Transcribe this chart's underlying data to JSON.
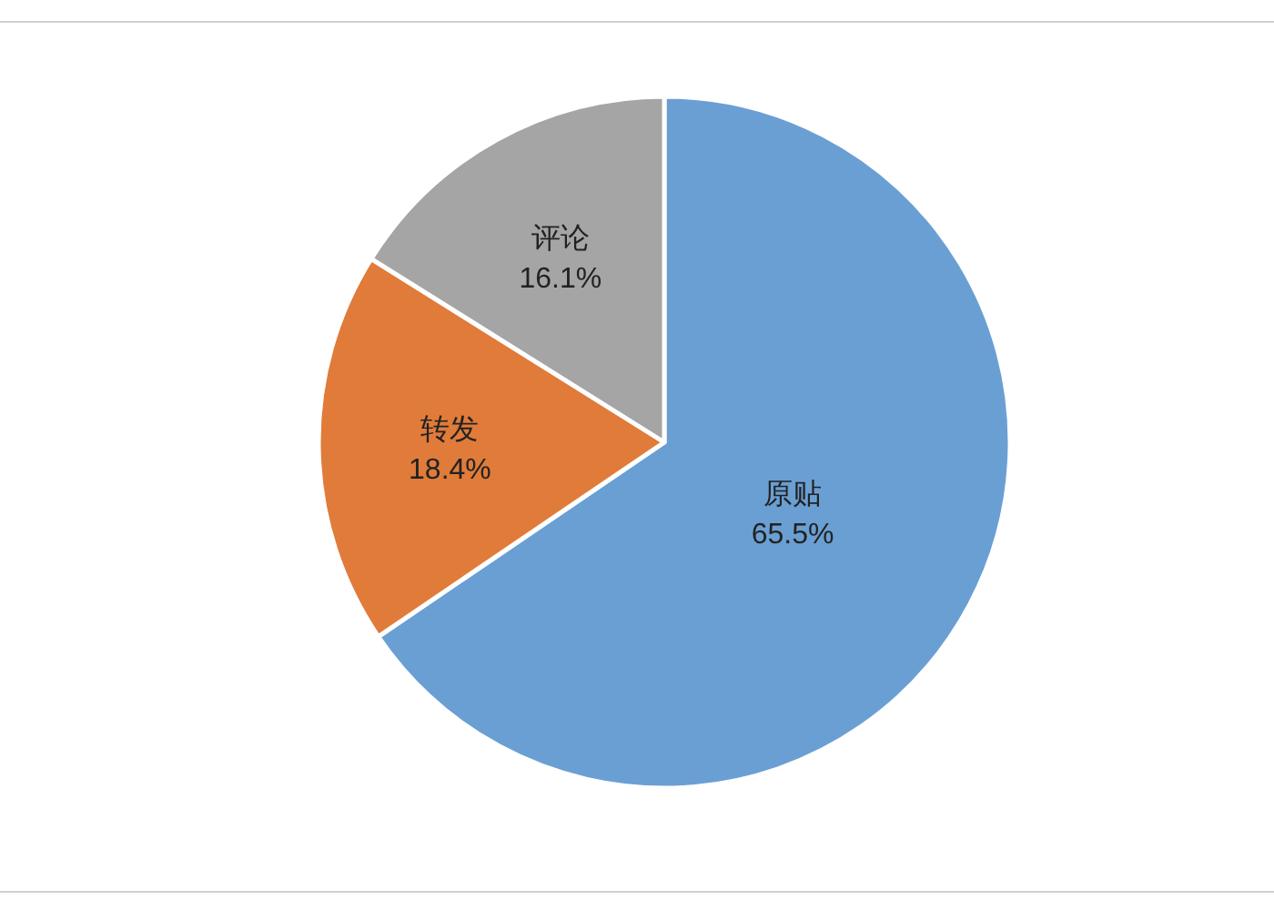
{
  "chart_data": {
    "type": "pie",
    "categories": [
      "原贴",
      "转发",
      "评论"
    ],
    "values": [
      65.5,
      18.4,
      16.1
    ],
    "colors": [
      "#6a9fd4",
      "#e07b3a",
      "#a5a5a5"
    ],
    "value_labels": [
      "65.5%",
      "18.4%",
      "16.1%"
    ]
  }
}
